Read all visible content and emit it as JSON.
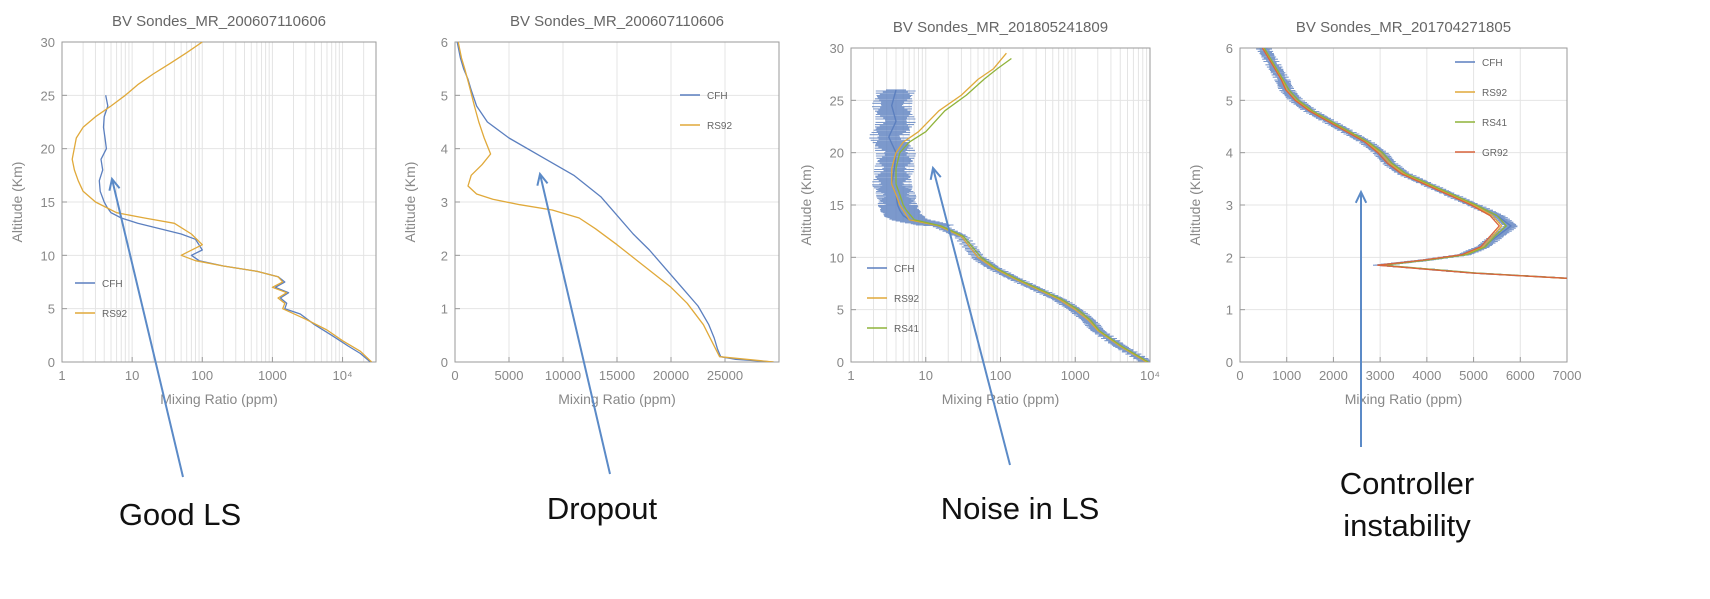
{
  "colors": {
    "CFH": "#5b7fbf",
    "RS92": "#e0a93a",
    "RS41": "#8fb33a",
    "GR92": "#d9643c",
    "arrow": "#5b8ac7",
    "grid": "#e4e4e4"
  },
  "chart_data": [
    {
      "type": "line",
      "title": "BV Sondes_MR_200607110606",
      "xlabel": "Mixing Ratio (ppm)",
      "ylabel": "Altitude (Km)",
      "xscale": "log",
      "xlim": [
        1,
        30000
      ],
      "ylim": [
        0,
        30
      ],
      "xticks": [
        1,
        10,
        100,
        1000,
        10000
      ],
      "xtick_labels": [
        "1",
        "10",
        "100",
        "1000",
        "10⁴"
      ],
      "yticks": [
        0,
        5,
        10,
        15,
        20,
        25,
        30
      ],
      "legend_position": "left",
      "series": [
        {
          "name": "CFH",
          "color": "CFH",
          "x": [
            4.2,
            4.5,
            4.0,
            3.9,
            4.1,
            4.3,
            3.6,
            3.8,
            3.4,
            3.5,
            4.0,
            4.4,
            5.0,
            7,
            12,
            25,
            50,
            80,
            100,
            70,
            90,
            200,
            600,
            1200,
            1500,
            1100,
            1700,
            1300,
            1600,
            1500,
            2500,
            4000,
            7000,
            12000,
            18000,
            25000
          ],
          "y": [
            25,
            24,
            23,
            22,
            21,
            20,
            19,
            18,
            17,
            16,
            15,
            14.5,
            14,
            13.5,
            13,
            12.5,
            12,
            11.5,
            10.5,
            10,
            9.5,
            9,
            8.5,
            8,
            7.5,
            7,
            6.5,
            6,
            5.5,
            5,
            4.5,
            3.5,
            2.5,
            1.5,
            0.8,
            0
          ]
        },
        {
          "name": "RS92",
          "color": "RS92",
          "x": [
            100,
            60,
            35,
            20,
            12,
            8,
            5,
            3,
            2,
            1.6,
            1.4,
            1.5,
            1.7,
            2,
            3,
            6,
            15,
            40,
            70,
            100,
            50,
            80,
            200,
            600,
            1200,
            1400,
            1000,
            1600,
            1200,
            1500,
            1400,
            3000,
            6000,
            10000,
            18000,
            26000
          ],
          "y": [
            30,
            29,
            28,
            27,
            26,
            25,
            24,
            23,
            22,
            21,
            19,
            18,
            17,
            16,
            15,
            14,
            13.5,
            13,
            12,
            11,
            10,
            9.5,
            9,
            8.5,
            8,
            7.5,
            7,
            6.5,
            6,
            5.5,
            5,
            4,
            3,
            2,
            1,
            0
          ]
        }
      ]
    },
    {
      "type": "line",
      "title": "BV Sondes_MR_200607110606",
      "xlabel": "Mixing Ratio (ppm)",
      "ylabel": "Altitude (Km)",
      "xscale": "linear",
      "xlim": [
        0,
        30000
      ],
      "ylim": [
        0,
        6
      ],
      "xticks": [
        0,
        5000,
        10000,
        15000,
        20000,
        25000
      ],
      "xtick_labels": [
        "0",
        "5000",
        "10000",
        "15000",
        "20000",
        "25000"
      ],
      "yticks": [
        0,
        1,
        2,
        3,
        4,
        5,
        6
      ],
      "legend_position": "top-right",
      "series": [
        {
          "name": "CFH",
          "color": "CFH",
          "x": [
            200,
            500,
            800,
            1200,
            1500,
            2000,
            3000,
            5000,
            8000,
            11000,
            13500,
            15000,
            16500,
            18000,
            19500,
            21000,
            22500,
            23500,
            24000,
            24300,
            24600,
            26000,
            29500
          ],
          "y": [
            6,
            5.7,
            5.5,
            5.3,
            5.1,
            4.8,
            4.5,
            4.2,
            3.85,
            3.5,
            3.1,
            2.75,
            2.4,
            2.1,
            1.75,
            1.4,
            1.05,
            0.7,
            0.45,
            0.25,
            0.1,
            0.05,
            0
          ]
        },
        {
          "name": "RS92",
          "color": "RS92",
          "x": [
            300,
            600,
            900,
            1300,
            1800,
            2200,
            2700,
            3300,
            2500,
            1500,
            1200,
            2000,
            3500,
            6000,
            9000,
            11500,
            13000,
            15000,
            17500,
            20000,
            21500,
            23000,
            24500,
            29500
          ],
          "y": [
            6,
            5.7,
            5.5,
            5.2,
            4.8,
            4.5,
            4.2,
            3.9,
            3.7,
            3.5,
            3.3,
            3.15,
            3.05,
            2.95,
            2.85,
            2.7,
            2.5,
            2.2,
            1.8,
            1.4,
            1.1,
            0.7,
            0.1,
            0
          ]
        }
      ]
    },
    {
      "type": "line",
      "title": "BV Sondes_MR_201805241809",
      "xlabel": "Mixing Ratio (ppm)",
      "ylabel": "Altitude (Km)",
      "xscale": "log",
      "xlim": [
        1,
        10000
      ],
      "ylim": [
        0,
        30
      ],
      "xticks": [
        1,
        10,
        100,
        1000,
        10000
      ],
      "xtick_labels": [
        "1",
        "10",
        "100",
        "1000",
        "10⁴"
      ],
      "yticks": [
        0,
        5,
        10,
        15,
        20,
        25,
        30
      ],
      "legend_position": "left",
      "series": [
        {
          "name": "CFH",
          "color": "CFH",
          "noisy": true,
          "x": [
            4,
            3.5,
            4,
            3.2,
            4,
            3.8,
            3.5,
            4,
            4.2,
            4.5,
            5,
            6,
            15,
            30,
            50,
            80,
            150,
            300,
            600,
            1000,
            1500,
            2000,
            4000,
            9000
          ],
          "y": [
            26,
            24.5,
            23,
            21.5,
            20,
            18.5,
            17,
            16,
            15,
            14.5,
            14,
            13.6,
            13,
            12,
            10,
            9,
            8,
            7,
            6,
            5,
            4,
            3,
            1.5,
            0
          ]
        },
        {
          "name": "RS92",
          "color": "RS92",
          "x": [
            120,
            80,
            50,
            30,
            15,
            8,
            5,
            4,
            3.5,
            3.5,
            4,
            4.5,
            5,
            6,
            15,
            30,
            50,
            80,
            150,
            300,
            600,
            1000,
            1500,
            2000,
            4000,
            9000
          ],
          "y": [
            29.5,
            28,
            27,
            25.5,
            24,
            22,
            21,
            20,
            18.5,
            17,
            16,
            15,
            14.5,
            13.6,
            13,
            12,
            10,
            9,
            8,
            7,
            6,
            5,
            4,
            3,
            1.5,
            0
          ]
        },
        {
          "name": "RS41",
          "color": "RS41",
          "x": [
            140,
            90,
            60,
            35,
            18,
            10,
            6,
            4.5,
            4,
            4,
            4.5,
            5,
            5.5,
            7,
            16,
            32,
            55,
            85,
            160,
            320,
            650,
            1100,
            1600,
            2100,
            4200,
            9500
          ],
          "y": [
            29,
            28,
            27,
            25.5,
            24,
            22,
            21,
            20,
            18.5,
            17,
            16,
            15,
            14.5,
            13.6,
            13,
            12,
            10,
            9,
            8,
            7,
            6,
            5,
            4,
            3,
            1.5,
            0
          ]
        }
      ]
    },
    {
      "type": "line",
      "title": "BV Sondes_MR_201704271805",
      "xlabel": "Mixing Ratio (ppm)",
      "ylabel": "Altitude (Km)",
      "xscale": "linear",
      "xlim": [
        0,
        7000
      ],
      "ylim": [
        0,
        6
      ],
      "xticks": [
        0,
        1000,
        2000,
        3000,
        4000,
        5000,
        6000,
        7000
      ],
      "xtick_labels": [
        "0",
        "1000",
        "2000",
        "3000",
        "4000",
        "5000",
        "6000",
        "7000"
      ],
      "yticks": [
        0,
        1,
        2,
        3,
        4,
        5,
        6
      ],
      "legend_position": "top-right",
      "series": [
        {
          "name": "CFH",
          "color": "CFH",
          "noisy": true,
          "x": [
            500,
            700,
            900,
            1000,
            1200,
            1500,
            1900,
            2300,
            2700,
            3000,
            3200,
            3500,
            4000,
            4500,
            5000,
            5500,
            5800,
            5500,
            5200,
            4800,
            4000,
            3500,
            3000,
            5000,
            7000
          ],
          "y": [
            6,
            5.7,
            5.4,
            5.2,
            5,
            4.8,
            4.6,
            4.4,
            4.2,
            4,
            3.8,
            3.6,
            3.4,
            3.2,
            3,
            2.8,
            2.6,
            2.4,
            2.2,
            2.05,
            1.95,
            1.9,
            1.85,
            1.7,
            1.6
          ]
        },
        {
          "name": "RS92",
          "color": "RS92",
          "x": [
            500,
            700,
            900,
            1000,
            1200,
            1500,
            1900,
            2300,
            2700,
            3000,
            3200,
            3500,
            4000,
            4500,
            5000,
            5400,
            5600,
            5400,
            5200,
            4800,
            4000,
            3500,
            3000,
            5000,
            7000
          ],
          "y": [
            6,
            5.7,
            5.4,
            5.2,
            5,
            4.8,
            4.6,
            4.4,
            4.2,
            4,
            3.8,
            3.6,
            3.4,
            3.2,
            3,
            2.8,
            2.6,
            2.4,
            2.2,
            2.05,
            1.95,
            1.9,
            1.85,
            1.7,
            1.6
          ]
        },
        {
          "name": "RS41",
          "color": "RS41",
          "x": [
            520,
            720,
            920,
            1050,
            1250,
            1550,
            1950,
            2350,
            2750,
            3050,
            3250,
            3550,
            4050,
            4550,
            5050,
            5500,
            5700,
            5450,
            5250,
            4850,
            4050,
            3550,
            3050,
            5050,
            7000
          ],
          "y": [
            6,
            5.7,
            5.4,
            5.2,
            5,
            4.8,
            4.6,
            4.4,
            4.2,
            4,
            3.8,
            3.6,
            3.4,
            3.2,
            3,
            2.8,
            2.6,
            2.4,
            2.2,
            2.05,
            1.95,
            1.9,
            1.85,
            1.7,
            1.6
          ]
        },
        {
          "name": "GR92",
          "color": "GR92",
          "x": [
            480,
            680,
            880,
            980,
            1180,
            1480,
            1880,
            2280,
            2680,
            2950,
            3150,
            3450,
            3950,
            4450,
            4950,
            5350,
            5550,
            5350,
            5150,
            4750,
            3950,
            3450,
            2950,
            4950,
            7000
          ],
          "y": [
            6,
            5.7,
            5.4,
            5.2,
            5,
            4.8,
            4.6,
            4.4,
            4.2,
            4,
            3.8,
            3.6,
            3.4,
            3.2,
            3,
            2.8,
            2.6,
            2.4,
            2.2,
            2.05,
            1.95,
            1.9,
            1.85,
            1.7,
            1.6
          ]
        }
      ]
    }
  ],
  "captions": [
    {
      "lines": [
        "Good LS"
      ]
    },
    {
      "lines": [
        "Dropout"
      ]
    },
    {
      "lines": [
        "Noise in LS"
      ]
    },
    {
      "lines": [
        "Controller",
        "instability"
      ]
    }
  ]
}
